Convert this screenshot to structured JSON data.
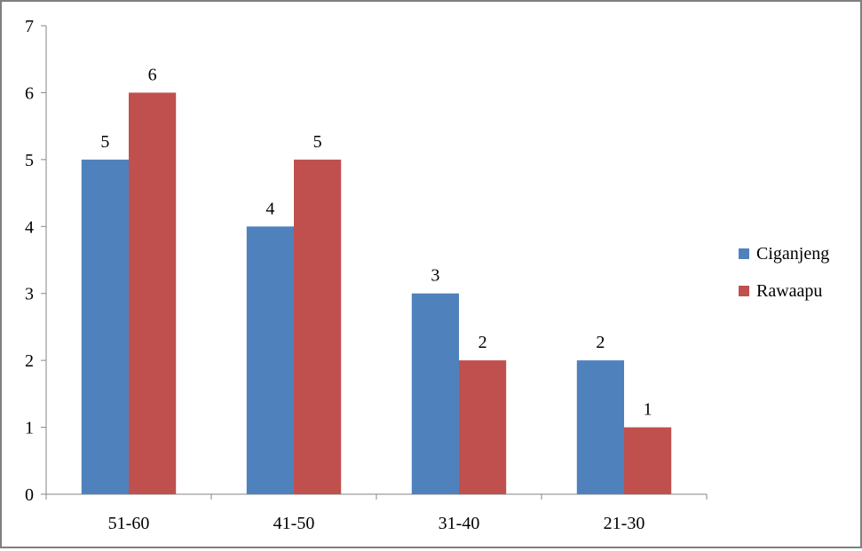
{
  "chart_data": {
    "type": "bar",
    "categories": [
      "51-60",
      "41-50",
      "31-40",
      "21-30"
    ],
    "series": [
      {
        "name": "Ciganjeng",
        "values": [
          5,
          4,
          3,
          2
        ],
        "color": "#4f81bd"
      },
      {
        "name": "Rawaapu",
        "values": [
          6,
          5,
          2,
          1
        ],
        "color": "#c0504d"
      }
    ],
    "ylim": [
      0,
      7
    ],
    "yticks": [
      0,
      1,
      2,
      3,
      4,
      5,
      6,
      7
    ],
    "grid": false,
    "legend": "right",
    "data_labels": true,
    "title": "",
    "xlabel": "",
    "ylabel": ""
  }
}
